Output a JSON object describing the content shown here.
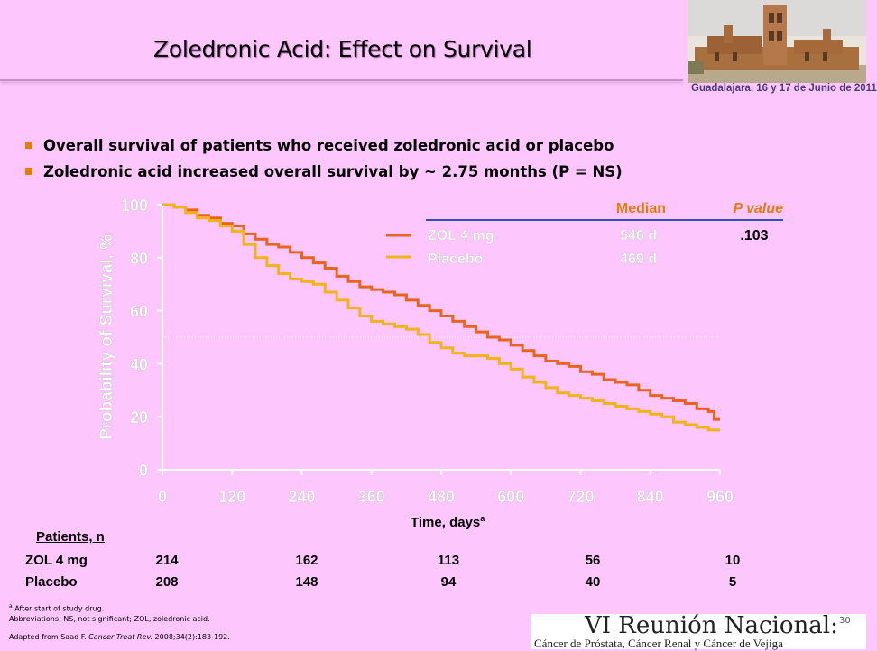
{
  "slide": {
    "title": "Zoledronic Acid: Effect on Survival",
    "header_caption": "Guadalajara, 16 y 17 de Junio de 2011",
    "bullets": [
      "Overall survival of patients who received zoledronic acid or placebo",
      "Zoledronic acid increased overall survival by ~ 2.75 months (P = NS)"
    ],
    "page_number": "30"
  },
  "chart_data": {
    "type": "line",
    "ylabel": "Probability of Survival, %",
    "xlabel": "Time, days",
    "xlabel_superscript": "a",
    "xlim": [
      0,
      960
    ],
    "ylim": [
      0,
      100
    ],
    "x_ticks": [
      "0",
      "120",
      "240",
      "360",
      "480",
      "600",
      "720",
      "840",
      "960"
    ],
    "y_ticks": [
      "0",
      "20",
      "40",
      "60",
      "80",
      "100"
    ],
    "reference_line_y": 50,
    "legend": {
      "col_median": "Median",
      "col_p": "P value",
      "p_value": ".103"
    },
    "series": [
      {
        "name": "ZOL 4 mg",
        "median": "546 d",
        "color": "#e8641e",
        "points": [
          [
            0,
            100
          ],
          [
            20,
            99
          ],
          [
            40,
            98
          ],
          [
            60,
            96
          ],
          [
            80,
            95
          ],
          [
            100,
            93
          ],
          [
            120,
            92
          ],
          [
            140,
            89
          ],
          [
            160,
            87
          ],
          [
            180,
            85
          ],
          [
            200,
            84
          ],
          [
            220,
            82
          ],
          [
            240,
            80
          ],
          [
            260,
            78
          ],
          [
            280,
            76
          ],
          [
            300,
            73
          ],
          [
            320,
            71
          ],
          [
            340,
            69
          ],
          [
            360,
            68
          ],
          [
            380,
            67
          ],
          [
            400,
            66
          ],
          [
            420,
            64
          ],
          [
            440,
            62
          ],
          [
            460,
            60
          ],
          [
            480,
            58
          ],
          [
            500,
            56
          ],
          [
            520,
            54
          ],
          [
            540,
            52
          ],
          [
            560,
            50
          ],
          [
            580,
            49
          ],
          [
            600,
            47
          ],
          [
            620,
            45
          ],
          [
            640,
            43
          ],
          [
            660,
            41
          ],
          [
            680,
            40
          ],
          [
            700,
            39
          ],
          [
            720,
            37
          ],
          [
            740,
            36
          ],
          [
            760,
            34
          ],
          [
            780,
            33
          ],
          [
            800,
            32
          ],
          [
            820,
            30
          ],
          [
            840,
            28
          ],
          [
            860,
            27
          ],
          [
            880,
            26
          ],
          [
            900,
            25
          ],
          [
            920,
            23
          ],
          [
            940,
            22
          ],
          [
            950,
            19
          ],
          [
            960,
            19
          ]
        ]
      },
      {
        "name": "Placebo",
        "median": "469 d",
        "color": "#f0b418",
        "points": [
          [
            0,
            100
          ],
          [
            20,
            99
          ],
          [
            40,
            97
          ],
          [
            60,
            95
          ],
          [
            80,
            94
          ],
          [
            100,
            92
          ],
          [
            120,
            90
          ],
          [
            140,
            85
          ],
          [
            160,
            80
          ],
          [
            180,
            77
          ],
          [
            200,
            74
          ],
          [
            220,
            72
          ],
          [
            240,
            71
          ],
          [
            260,
            70
          ],
          [
            280,
            67
          ],
          [
            300,
            64
          ],
          [
            320,
            61
          ],
          [
            340,
            58
          ],
          [
            360,
            56
          ],
          [
            380,
            55
          ],
          [
            400,
            54
          ],
          [
            420,
            53
          ],
          [
            440,
            51
          ],
          [
            460,
            48
          ],
          [
            480,
            46
          ],
          [
            500,
            44
          ],
          [
            520,
            43
          ],
          [
            540,
            43
          ],
          [
            560,
            42
          ],
          [
            580,
            40
          ],
          [
            600,
            38
          ],
          [
            620,
            35
          ],
          [
            640,
            33
          ],
          [
            660,
            31
          ],
          [
            680,
            29
          ],
          [
            700,
            28
          ],
          [
            720,
            27
          ],
          [
            740,
            26
          ],
          [
            760,
            25
          ],
          [
            780,
            24
          ],
          [
            800,
            23
          ],
          [
            820,
            22
          ],
          [
            840,
            21
          ],
          [
            860,
            20
          ],
          [
            880,
            18
          ],
          [
            900,
            17
          ],
          [
            920,
            16
          ],
          [
            940,
            15
          ],
          [
            960,
            15
          ]
        ]
      }
    ]
  },
  "patients": {
    "header": "Patients, n",
    "rows": [
      {
        "label": "ZOL 4 mg",
        "values": [
          "214",
          "162",
          "113",
          "56",
          "10"
        ]
      },
      {
        "label": "Placebo",
        "values": [
          "208",
          "148",
          "94",
          "40",
          "5"
        ]
      }
    ]
  },
  "footnotes": {
    "marker": "a",
    "note_a": "After start of study drug.",
    "abbreviations": "Abbreviations: NS, not significant; ZOL, zoledronic acid.",
    "source_prefix": "Adapted from Saad F. ",
    "source_journal": "Cancer Treat Rev.",
    "source_suffix": " 2008;34(2):183-192."
  },
  "banner": {
    "title": "VI Reunión Nacional:",
    "subtitle": "Cáncer de Próstata, Cáncer Renal y Cáncer de Vejiga"
  }
}
